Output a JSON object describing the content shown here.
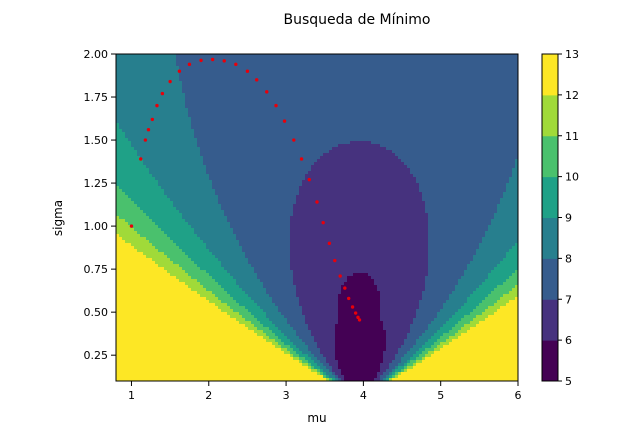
{
  "chart_data": {
    "type": "contour",
    "title": "Busqueda de Mínimo",
    "xlabel": "mu",
    "ylabel": "sigma",
    "xlim": [
      0.8,
      6
    ],
    "ylim": [
      0.1,
      2.0
    ],
    "x_ticks": [
      1,
      2,
      3,
      4,
      5,
      6
    ],
    "x_tick_labels": [
      "1",
      "2",
      "3",
      "4",
      "5",
      "6"
    ],
    "y_ticks": [
      0.25,
      0.5,
      0.75,
      1.0,
      1.25,
      1.5,
      1.75,
      2.0
    ],
    "y_tick_labels": [
      "0.25",
      "0.50",
      "0.75",
      "1.00",
      "1.25",
      "1.50",
      "1.75",
      "2.00"
    ],
    "contour_levels": [
      5,
      6,
      7,
      8,
      9,
      10,
      11,
      12,
      13
    ],
    "colorbar_tick_labels": [
      "5",
      "6",
      "7",
      "8",
      "9",
      "10",
      "11",
      "12",
      "13"
    ],
    "level_colors": [
      "#440154",
      "#46327e",
      "#365c8d",
      "#277f8e",
      "#1fa187",
      "#4ac16d",
      "#a0da39",
      "#fde725"
    ],
    "path_color": "#e8000b",
    "path": [
      [
        1.0,
        1.0
      ],
      [
        1.12,
        1.39
      ],
      [
        1.18,
        1.5
      ],
      [
        1.22,
        1.56
      ],
      [
        1.27,
        1.62
      ],
      [
        1.33,
        1.7
      ],
      [
        1.4,
        1.77
      ],
      [
        1.5,
        1.84
      ],
      [
        1.62,
        1.9
      ],
      [
        1.75,
        1.94
      ],
      [
        1.9,
        1.963
      ],
      [
        2.05,
        1.968
      ],
      [
        2.2,
        1.96
      ],
      [
        2.35,
        1.94
      ],
      [
        2.5,
        1.9
      ],
      [
        2.62,
        1.85
      ],
      [
        2.75,
        1.78
      ],
      [
        2.87,
        1.7
      ],
      [
        2.98,
        1.61
      ],
      [
        3.1,
        1.5
      ],
      [
        3.2,
        1.39
      ],
      [
        3.3,
        1.27
      ],
      [
        3.4,
        1.14
      ],
      [
        3.48,
        1.02
      ],
      [
        3.56,
        0.9
      ],
      [
        3.63,
        0.8
      ],
      [
        3.7,
        0.71
      ],
      [
        3.76,
        0.64
      ],
      [
        3.81,
        0.58
      ],
      [
        3.86,
        0.53
      ],
      [
        3.9,
        0.495
      ],
      [
        3.93,
        0.47
      ],
      [
        3.95,
        0.455
      ]
    ]
  }
}
